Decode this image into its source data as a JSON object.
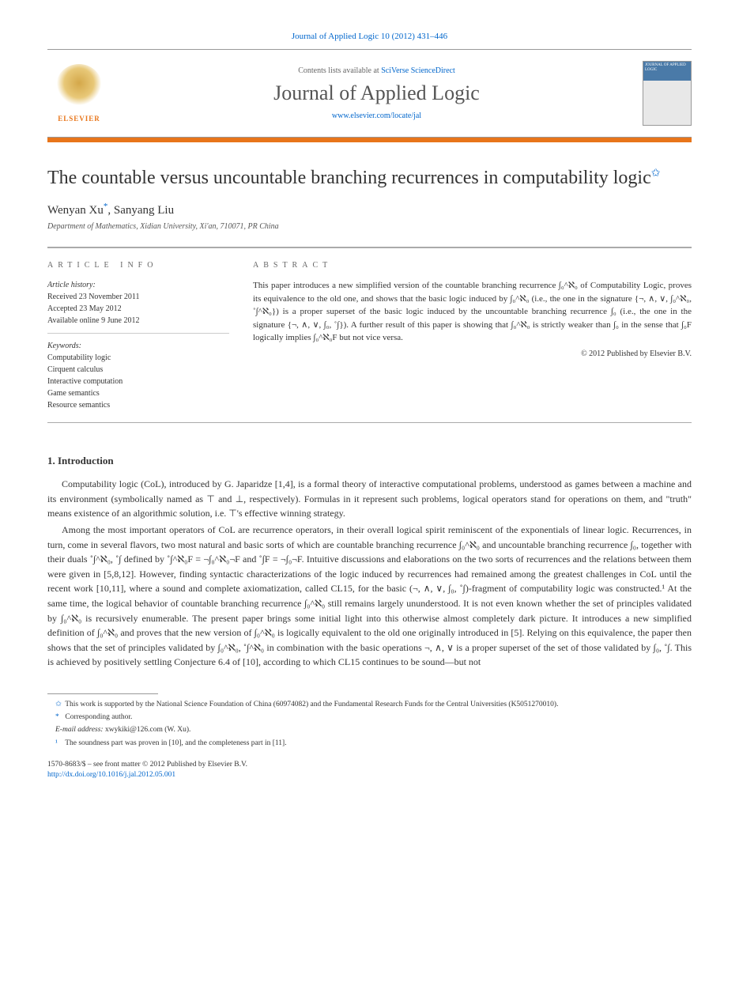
{
  "citation": "Journal of Applied Logic 10 (2012) 431–446",
  "banner": {
    "contents_prefix": "Contents lists available at ",
    "contents_link": "SciVerse ScienceDirect",
    "journal_title": "Journal of Applied Logic",
    "locate_link": "www.elsevier.com/locate/jal",
    "publisher": "ELSEVIER",
    "cover_label": "JOURNAL OF APPLIED LOGIC"
  },
  "title": "The countable versus uncountable branching recurrences in computability logic",
  "title_note_symbol": "✩",
  "authors_html": "Wenyan Xu",
  "author2": ", Sanyang Liu",
  "corr_symbol": "*",
  "affiliation": "Department of Mathematics, Xidian University, Xi'an, 710071, PR China",
  "info": {
    "heading": "ARTICLE INFO",
    "history_label": "Article history:",
    "received": "Received 23 November 2011",
    "accepted": "Accepted 23 May 2012",
    "online": "Available online 9 June 2012",
    "keywords_label": "Keywords:",
    "kw1": "Computability logic",
    "kw2": "Cirquent calculus",
    "kw3": "Interactive computation",
    "kw4": "Game semantics",
    "kw5": "Resource semantics"
  },
  "abstract": {
    "heading": "ABSTRACT",
    "text": "This paper introduces a new simplified version of the countable branching recurrence ∫₀^ℵ₀ of Computability Logic, proves its equivalence to the old one, and shows that the basic logic induced by ∫₀^ℵ₀ (i.e., the one in the signature {¬, ∧, ∨, ∫₀^ℵ₀, ˚∫^ℵ₀}) is a proper superset of the basic logic induced by the uncountable branching recurrence ∫₀ (i.e., the one in the signature {¬, ∧, ∨, ∫₀, ˚∫}). A further result of this paper is showing that ∫₀^ℵ₀ is strictly weaker than ∫₀ in the sense that ∫₀F logically implies ∫₀^ℵ₀F but not vice versa.",
    "copyright": "© 2012 Published by Elsevier B.V."
  },
  "section1": {
    "heading": "1. Introduction",
    "p1": "Computability logic (CoL), introduced by G. Japaridze [1,4], is a formal theory of interactive computational problems, understood as games between a machine and its environment (symbolically named as ⊤ and ⊥, respectively). Formulas in it represent such problems, logical operators stand for operations on them, and \"truth\" means existence of an algorithmic solution, i.e. ⊤'s effective winning strategy.",
    "p2": "Among the most important operators of CoL are recurrence operators, in their overall logical spirit reminiscent of the exponentials of linear logic. Recurrences, in turn, come in several flavors, two most natural and basic sorts of which are countable branching recurrence ∫₀^ℵ₀ and uncountable branching recurrence ∫₀, together with their duals ˚∫^ℵ₀, ˚∫ defined by ˚∫^ℵ₀F = ¬∫₀^ℵ₀¬F and ˚∫F = ¬∫₀¬F. Intuitive discussions and elaborations on the two sorts of recurrences and the relations between them were given in [5,8,12]. However, finding syntactic characterizations of the logic induced by recurrences had remained among the greatest challenges in CoL until the recent work [10,11], where a sound and complete axiomatization, called CL15, for the basic (¬, ∧, ∨, ∫₀, ˚∫)-fragment of computability logic was constructed.¹ At the same time, the logical behavior of countable branching recurrence ∫₀^ℵ₀ still remains largely ununderstood. It is not even known whether the set of principles validated by ∫₀^ℵ₀ is recursively enumerable. The present paper brings some initial light into this otherwise almost completely dark picture. It introduces a new simplified definition of ∫₀^ℵ₀ and proves that the new version of ∫₀^ℵ₀ is logically equivalent to the old one originally introduced in [5]. Relying on this equivalence, the paper then shows that the set of principles validated by ∫₀^ℵ₀, ˚∫^ℵ₀ in combination with the basic operations ¬, ∧, ∨ is a proper superset of the set of those validated by ∫₀, ˚∫. This is achieved by positively settling Conjecture 6.4 of [10], according to which CL15 continues to be sound—but not"
  },
  "footnotes": {
    "f_star": "This work is supported by the National Science Foundation of China (60974082) and the Fundamental Research Funds for the Central Universities (K5051270010).",
    "f_corr": "Corresponding author.",
    "f_email_label": "E-mail address: ",
    "f_email": "xwykiki@126.com",
    "f_email_who": " (W. Xu).",
    "f1": "The soundness part was proven in [10], and the completeness part in [11]."
  },
  "bottom": {
    "front": "1570-8683/$ – see front matter   © 2012 Published by Elsevier B.V.",
    "doi": "http://dx.doi.org/10.1016/j.jal.2012.05.001"
  },
  "colors": {
    "accent": "#e8751a",
    "link": "#0066cc",
    "text": "#333333"
  }
}
